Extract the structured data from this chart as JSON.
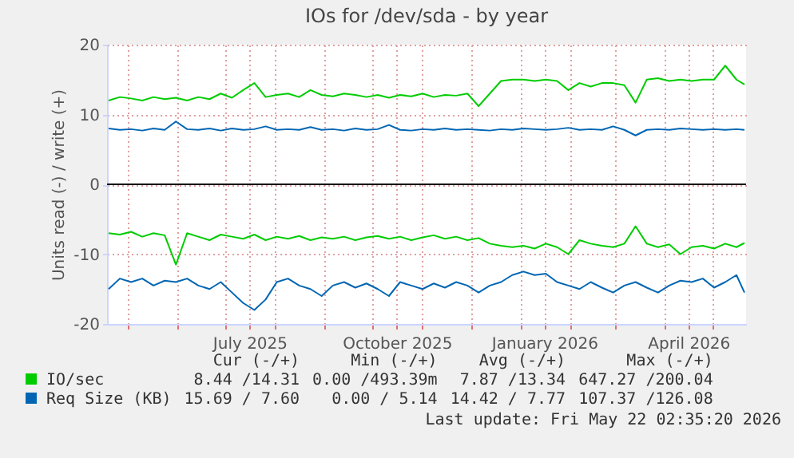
{
  "chart_data": {
    "type": "line",
    "title": "IOs for /dev/sda - by year",
    "ylabel": "Units read (-) / write (+)",
    "x": [
      "2025-04-19",
      "2025-04-26",
      "2025-05-03",
      "2025-05-10",
      "2025-05-17",
      "2025-05-24",
      "2025-05-31",
      "2025-06-07",
      "2025-06-14",
      "2025-06-21",
      "2025-06-28",
      "2025-07-05",
      "2025-07-12",
      "2025-07-19",
      "2025-07-26",
      "2025-08-02",
      "2025-08-09",
      "2025-08-16",
      "2025-08-23",
      "2025-08-30",
      "2025-09-06",
      "2025-09-13",
      "2025-09-20",
      "2025-09-27",
      "2025-10-04",
      "2025-10-11",
      "2025-10-18",
      "2025-10-25",
      "2025-11-01",
      "2025-11-08",
      "2025-11-15",
      "2025-11-22",
      "2025-11-29",
      "2025-12-06",
      "2025-12-13",
      "2025-12-20",
      "2025-12-27",
      "2026-01-03",
      "2026-01-10",
      "2026-01-17",
      "2026-01-24",
      "2026-01-31",
      "2026-02-07",
      "2026-02-14",
      "2026-02-21",
      "2026-02-28",
      "2026-03-07",
      "2026-03-14",
      "2026-03-21",
      "2026-03-28",
      "2026-04-04",
      "2026-04-11",
      "2026-04-18",
      "2026-04-25",
      "2026-05-02",
      "2026-05-09",
      "2026-05-16",
      "2026-05-21"
    ],
    "series": [
      {
        "name": "IO/sec",
        "color": "#00cc00",
        "values": [
          12,
          12.5,
          12.3,
          12,
          12.5,
          12.2,
          12.4,
          12,
          12.5,
          12.2,
          13,
          12.4,
          13.5,
          14.5,
          12.5,
          12.8,
          13,
          12.5,
          13.5,
          12.8,
          12.6,
          13,
          12.8,
          12.5,
          12.8,
          12.4,
          12.8,
          12.6,
          13,
          12.5,
          12.8,
          12.7,
          13,
          11.2,
          13,
          14.8,
          15,
          15,
          14.8,
          15,
          14.8,
          13.5,
          14.5,
          14,
          14.5,
          14.5,
          14.2,
          11.7,
          15,
          15.2,
          14.8,
          15,
          14.8,
          15,
          15,
          17,
          15,
          14.3
        ]
      },
      {
        "color": "#00cc00",
        "values": [
          -7,
          -7.2,
          -6.8,
          -7.5,
          -7,
          -7.3,
          -11.5,
          -7,
          -7.5,
          -8,
          -7.2,
          -7.5,
          -7.8,
          -7.2,
          -8,
          -7.5,
          -7.8,
          -7.4,
          -8,
          -7.6,
          -7.8,
          -7.5,
          -8,
          -7.6,
          -7.4,
          -7.8,
          -7.5,
          -8,
          -7.6,
          -7.3,
          -7.8,
          -7.5,
          -8,
          -7.7,
          -8.5,
          -8.8,
          -9,
          -8.8,
          -9.2,
          -8.5,
          -9,
          -10,
          -8,
          -8.5,
          -8.8,
          -9,
          -8.5,
          -6,
          -8.5,
          -9,
          -8.6,
          -10,
          -9,
          -8.8,
          -9.2,
          -8.5,
          -9,
          -8.4
        ]
      },
      {
        "name": "Req Size (KB)",
        "color": "#0066b3",
        "values": [
          8,
          7.8,
          7.9,
          7.7,
          8,
          7.8,
          9,
          7.9,
          7.8,
          8,
          7.7,
          8,
          7.8,
          7.9,
          8.3,
          7.8,
          7.9,
          7.8,
          8.2,
          7.8,
          7.9,
          7.7,
          8,
          7.8,
          7.9,
          8.5,
          7.8,
          7.7,
          7.9,
          7.8,
          8,
          7.8,
          7.9,
          7.8,
          7.7,
          7.9,
          7.8,
          8,
          7.9,
          7.8,
          7.9,
          8.1,
          7.8,
          7.9,
          7.8,
          8.3,
          7.8,
          7,
          7.8,
          7.9,
          7.8,
          8,
          7.9,
          7.8,
          7.9,
          7.8,
          7.9,
          7.8
        ]
      },
      {
        "color": "#0066b3",
        "values": [
          -15,
          -13.5,
          -14,
          -13.5,
          -14.5,
          -13.8,
          -14,
          -13.5,
          -14.5,
          -15,
          -14,
          -15.5,
          -17,
          -18,
          -16.5,
          -14,
          -13.5,
          -14.5,
          -15,
          -16,
          -14.5,
          -14,
          -14.8,
          -14.2,
          -15,
          -16,
          -14,
          -14.5,
          -15,
          -14.2,
          -14.8,
          -14,
          -14.5,
          -15.5,
          -14.5,
          -14,
          -13,
          -12.5,
          -13,
          -12.8,
          -14,
          -14.5,
          -15,
          -14,
          -14.8,
          -15.5,
          -14.5,
          -14,
          -14.8,
          -15.5,
          -14.5,
          -13.8,
          -14,
          -13.5,
          -14.8,
          -14,
          -13,
          -15.5
        ]
      }
    ],
    "xlim": [
      "2025-04-18",
      "2026-05-22"
    ],
    "xticks": [
      {
        "value": "2025-05-01",
        "label": null
      },
      {
        "value": "2025-06-01",
        "label": null
      },
      {
        "value": "2025-07-01",
        "label": null
      },
      {
        "value": "2025-07-16",
        "label": "July 2025"
      },
      {
        "value": "2025-08-01",
        "label": null
      },
      {
        "value": "2025-09-01",
        "label": null
      },
      {
        "value": "2025-10-01",
        "label": null
      },
      {
        "value": "2025-10-16",
        "label": "October 2025"
      },
      {
        "value": "2025-11-01",
        "label": null
      },
      {
        "value": "2025-12-01",
        "label": null
      },
      {
        "value": "2026-01-01",
        "label": null
      },
      {
        "value": "2026-01-16",
        "label": "January 2026"
      },
      {
        "value": "2026-02-01",
        "label": null
      },
      {
        "value": "2026-03-01",
        "label": null
      },
      {
        "value": "2026-04-01",
        "label": null
      },
      {
        "value": "2026-04-16",
        "label": "April 2026"
      },
      {
        "value": "2026-05-01",
        "label": null
      }
    ],
    "ylim": [
      -20,
      20
    ],
    "yticks": [
      -20,
      -10,
      0,
      10,
      20
    ],
    "ref_lines": [
      {
        "axis": "y",
        "value": 0,
        "color": "#000000"
      }
    ],
    "grid": true,
    "legend": "bottom left",
    "annotations": [
      "Cur (-/+)",
      "Min (-/+)",
      "Avg (-/+)",
      "Max (-/+)",
      "8.44 /14.31",
      "0.00 /493.39m",
      "7.87 /13.34",
      "647.27 /200.04",
      "15.69 / 7.60",
      "0.00 / 5.14",
      "14.42 / 7.77",
      "107.37 /126.08",
      "Last update: Fri May 22 02:35:20 2026"
    ]
  }
}
